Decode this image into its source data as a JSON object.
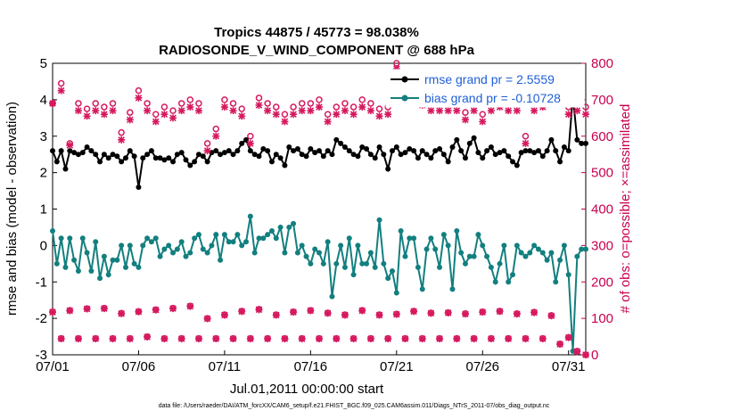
{
  "chart_data": {
    "type": "line",
    "title": "Tropics 44875 / 45773 = 98.038%",
    "subtitle": "RADIOSONDE_V_WIND_COMPONENT @ 688 hPa",
    "xlabel": "Jul.01,2011 00:00:00 start",
    "ylabel": "rmse and bias (model - observation)",
    "ylabel_right": "# of obs: o=possible; ×=assimilated",
    "footer": "data file: /Users/raeder/DAI/ATM_forcXX/CAM6_setup/f.e21.FHIST_BGC.f09_025.CAM6assim.011/Diags_NTrS_2011-07/obs_diag_output.nc",
    "xlim": [
      0,
      31
    ],
    "ylim": [
      -3,
      5
    ],
    "ylim_right": [
      0,
      800
    ],
    "x_tick_labels": [
      "07/01",
      "07/06",
      "07/11",
      "07/16",
      "07/21",
      "07/26",
      "07/31"
    ],
    "y_tick_labels": [
      "-3",
      "-2",
      "-1",
      "0",
      "1",
      "2",
      "3",
      "4",
      "5"
    ],
    "y_right_tick_labels": [
      "0",
      "100",
      "200",
      "300",
      "400",
      "500",
      "600",
      "700",
      "800"
    ],
    "grid": true,
    "zero_line": true,
    "legend": [
      {
        "label": "rmse grand pr = 2.5559",
        "color": "#000000"
      },
      {
        "label": "bias grand pr = -0.10728",
        "color": "#137f7f"
      }
    ],
    "series": [
      {
        "name": "rmse",
        "color": "#000000",
        "axis": "left",
        "x": [
          0.0,
          0.25,
          0.5,
          0.75,
          1.0,
          1.25,
          1.5,
          1.75,
          2.0,
          2.25,
          2.5,
          2.75,
          3.0,
          3.25,
          3.5,
          3.75,
          4.0,
          4.25,
          4.5,
          4.75,
          5.0,
          5.25,
          5.5,
          5.75,
          6.0,
          6.25,
          6.5,
          6.75,
          7.0,
          7.25,
          7.5,
          7.75,
          8.0,
          8.25,
          8.5,
          8.75,
          9.0,
          9.25,
          9.5,
          9.75,
          10.0,
          10.25,
          10.5,
          10.75,
          11.0,
          11.25,
          11.5,
          11.75,
          12.0,
          12.25,
          12.5,
          12.75,
          13.0,
          13.25,
          13.5,
          13.75,
          14.0,
          14.25,
          14.5,
          14.75,
          15.0,
          15.25,
          15.5,
          15.75,
          16.0,
          16.25,
          16.5,
          16.75,
          17.0,
          17.25,
          17.5,
          17.75,
          18.0,
          18.25,
          18.5,
          18.75,
          19.0,
          19.25,
          19.5,
          19.75,
          20.0,
          20.25,
          20.5,
          20.75,
          21.0,
          21.25,
          21.5,
          21.75,
          22.0,
          22.25,
          22.5,
          22.75,
          23.0,
          23.25,
          23.5,
          23.75,
          24.0,
          24.25,
          24.5,
          24.75,
          25.0,
          25.25,
          25.5,
          25.75,
          26.0,
          26.25,
          26.5,
          26.75,
          27.0,
          27.25,
          27.5,
          27.75,
          28.0,
          28.25,
          28.5,
          28.75,
          29.0,
          29.25,
          29.5,
          29.75,
          30.0,
          30.25,
          30.5,
          30.75,
          31.0
        ],
        "values": [
          2.6,
          2.3,
          2.6,
          2.1,
          2.6,
          2.55,
          2.5,
          2.55,
          2.7,
          2.6,
          2.5,
          2.3,
          2.5,
          2.4,
          2.5,
          2.45,
          2.3,
          2.4,
          2.6,
          2.45,
          1.6,
          2.4,
          2.5,
          2.6,
          2.4,
          2.4,
          2.35,
          2.4,
          2.3,
          2.5,
          2.55,
          2.35,
          2.2,
          2.3,
          2.5,
          2.45,
          2.3,
          2.55,
          2.6,
          2.5,
          2.55,
          2.6,
          2.5,
          2.6,
          2.8,
          2.9,
          2.6,
          2.5,
          2.45,
          2.65,
          2.6,
          2.3,
          2.5,
          2.4,
          2.2,
          2.7,
          2.6,
          2.65,
          2.5,
          2.45,
          2.65,
          2.55,
          2.6,
          2.45,
          2.6,
          2.5,
          2.9,
          2.8,
          2.7,
          2.6,
          2.5,
          2.45,
          2.7,
          2.65,
          2.5,
          2.4,
          2.7,
          2.5,
          2.1,
          2.6,
          2.7,
          2.5,
          2.55,
          2.65,
          2.6,
          2.4,
          2.6,
          2.5,
          2.4,
          2.6,
          2.65,
          2.5,
          2.3,
          2.7,
          2.9,
          2.6,
          2.4,
          2.8,
          2.95,
          2.55,
          2.4,
          2.6,
          2.7,
          2.5,
          2.55,
          2.6,
          2.45,
          2.3,
          2.2,
          2.55,
          2.6,
          2.6,
          2.55,
          2.6,
          2.45,
          2.6,
          2.9,
          2.6,
          2.3,
          2.7,
          2.6,
          4.1,
          2.9,
          2.8,
          2.8
        ]
      },
      {
        "name": "bias",
        "color": "#137f7f",
        "axis": "left",
        "x": [
          0.0,
          0.25,
          0.5,
          0.75,
          1.0,
          1.25,
          1.5,
          1.75,
          2.0,
          2.25,
          2.5,
          2.75,
          3.0,
          3.25,
          3.5,
          3.75,
          4.0,
          4.25,
          4.5,
          4.75,
          5.0,
          5.25,
          5.5,
          5.75,
          6.0,
          6.25,
          6.5,
          6.75,
          7.0,
          7.25,
          7.5,
          7.75,
          8.0,
          8.25,
          8.5,
          8.75,
          9.0,
          9.25,
          9.5,
          9.75,
          10.0,
          10.25,
          10.5,
          10.75,
          11.0,
          11.25,
          11.5,
          11.75,
          12.0,
          12.25,
          12.5,
          12.75,
          13.0,
          13.25,
          13.5,
          13.75,
          14.0,
          14.25,
          14.5,
          14.75,
          15.0,
          15.25,
          15.5,
          15.75,
          16.0,
          16.25,
          16.5,
          16.75,
          17.0,
          17.25,
          17.5,
          17.75,
          18.0,
          18.25,
          18.5,
          18.75,
          19.0,
          19.25,
          19.5,
          19.75,
          20.0,
          20.25,
          20.5,
          20.75,
          21.0,
          21.25,
          21.5,
          21.75,
          22.0,
          22.25,
          22.5,
          22.75,
          23.0,
          23.25,
          23.5,
          23.75,
          24.0,
          24.25,
          24.5,
          24.75,
          25.0,
          25.25,
          25.5,
          25.75,
          26.0,
          26.25,
          26.5,
          26.75,
          27.0,
          27.25,
          27.5,
          27.75,
          28.0,
          28.25,
          28.5,
          28.75,
          29.0,
          29.25,
          29.5,
          29.75,
          30.0,
          30.25,
          30.5,
          30.75,
          31.0
        ],
        "values": [
          0.4,
          -0.5,
          0.2,
          -0.6,
          0.2,
          -0.4,
          -0.7,
          0.2,
          -0.2,
          -0.7,
          0.1,
          -0.9,
          -0.3,
          -0.8,
          -0.4,
          -0.4,
          0.0,
          -0.6,
          0.0,
          -0.5,
          -0.6,
          0.0,
          0.2,
          0.1,
          0.2,
          -0.3,
          -0.1,
          0.0,
          -0.2,
          -0.1,
          0.1,
          -0.3,
          -0.2,
          0.2,
          0.3,
          -0.1,
          -0.2,
          0.0,
          0.3,
          -0.4,
          0.3,
          0.1,
          0.1,
          0.3,
          0.0,
          0.1,
          0.8,
          -0.2,
          0.2,
          0.2,
          0.3,
          0.4,
          0.2,
          0.5,
          -0.2,
          0.5,
          0.6,
          -0.2,
          0.0,
          -0.3,
          -0.5,
          -0.1,
          -0.2,
          -0.5,
          0.1,
          -1.4,
          -0.5,
          0.0,
          -0.6,
          0.2,
          -0.8,
          0.0,
          -0.5,
          -0.5,
          -0.2,
          -0.6,
          0.7,
          -0.5,
          -0.9,
          -0.7,
          -1.3,
          0.4,
          -0.3,
          0.2,
          0.2,
          -0.6,
          -1.2,
          -0.1,
          0.2,
          -0.1,
          -0.6,
          0.3,
          0.0,
          -1.2,
          0.4,
          -0.2,
          -0.5,
          -0.3,
          -0.3,
          0.3,
          0.0,
          -0.3,
          -0.6,
          -1.0,
          -0.5,
          0.0,
          -1.0,
          -0.8,
          0.0,
          -0.2,
          -0.3,
          -0.2,
          0.0,
          -0.1,
          -0.2,
          -0.4,
          -0.2,
          -1.0,
          -0.4,
          0.0,
          -0.8,
          -2.9,
          -0.3,
          -0.1,
          -0.1
        ]
      },
      {
        "name": "obs possible",
        "color": "#d6195f",
        "axis": "right",
        "marker": "o",
        "x": [
          0.0,
          0.5,
          1.0,
          1.5,
          2.0,
          2.5,
          3.0,
          3.5,
          4.0,
          4.5,
          5.0,
          5.5,
          6.0,
          6.5,
          7.0,
          7.5,
          8.0,
          8.5,
          9.0,
          9.5,
          10.0,
          10.5,
          11.0,
          11.5,
          12.0,
          12.5,
          13.0,
          13.5,
          14.0,
          14.5,
          15.0,
          15.5,
          16.0,
          16.5,
          17.0,
          17.5,
          18.0,
          18.5,
          19.0,
          19.5,
          20.0,
          20.5,
          21.0,
          21.5,
          22.0,
          22.5,
          23.0,
          23.5,
          24.0,
          24.5,
          25.0,
          25.5,
          26.0,
          26.5,
          27.0,
          27.5,
          28.0,
          28.5,
          29.0,
          29.5,
          30.0,
          30.5,
          31.0
        ],
        "values": [
          118,
          45,
          122,
          45,
          127,
          45,
          128,
          45,
          114,
          45,
          119,
          50,
          124,
          45,
          128,
          45,
          134,
          45,
          100,
          45,
          110,
          45,
          120,
          45,
          125,
          45,
          110,
          45,
          118,
          45,
          122,
          45,
          115,
          45,
          110,
          45,
          122,
          45,
          110,
          45,
          112,
          45,
          120,
          45,
          115,
          45,
          116,
          45,
          113,
          45,
          118,
          45,
          120,
          45,
          113,
          45,
          117,
          45,
          108,
          30,
          48,
          10,
          0
        ]
      },
      {
        "name": "obs assimilated",
        "color": "#d6195f",
        "axis": "right",
        "marker": "x",
        "x": [
          0.0,
          0.5,
          1.0,
          1.5,
          2.0,
          2.5,
          3.0,
          3.5,
          4.0,
          4.5,
          5.0,
          5.5,
          6.0,
          6.5,
          7.0,
          7.5,
          8.0,
          8.5,
          9.0,
          9.5,
          10.0,
          10.5,
          11.0,
          11.5,
          12.0,
          12.5,
          13.0,
          13.5,
          14.0,
          14.5,
          15.0,
          15.5,
          16.0,
          16.5,
          17.0,
          17.5,
          18.0,
          18.5,
          19.0,
          19.5,
          20.0,
          20.5,
          21.0,
          21.5,
          22.0,
          22.5,
          23.0,
          23.5,
          24.0,
          24.5,
          25.0,
          25.5,
          26.0,
          26.5,
          27.0,
          27.5,
          28.0,
          28.5,
          29.0,
          29.5,
          30.0,
          30.5,
          31.0
        ],
        "values": [
          117,
          44,
          121,
          44,
          126,
          44,
          127,
          44,
          113,
          44,
          118,
          49,
          123,
          44,
          127,
          44,
          133,
          44,
          99,
          44,
          109,
          44,
          119,
          44,
          124,
          44,
          109,
          44,
          117,
          44,
          121,
          44,
          114,
          44,
          109,
          44,
          121,
          44,
          109,
          44,
          111,
          44,
          119,
          44,
          114,
          44,
          115,
          44,
          112,
          44,
          117,
          44,
          119,
          44,
          112,
          44,
          116,
          44,
          107,
          29,
          47,
          9,
          0
        ]
      },
      {
        "name": "obs possible (upper)",
        "color": "#d6195f",
        "axis": "right",
        "marker": "o",
        "x": [
          0.0,
          0.5,
          1.0,
          1.5,
          2.0,
          2.5,
          3.0,
          3.5,
          4.0,
          4.5,
          5.0,
          5.5,
          6.0,
          6.5,
          7.0,
          7.5,
          8.0,
          8.5,
          9.0,
          9.5,
          10.0,
          10.5,
          11.0,
          11.5,
          12.0,
          12.5,
          13.0,
          13.5,
          14.0,
          14.5,
          15.0,
          15.5,
          16.0,
          16.5,
          17.0,
          17.5,
          18.0,
          18.5,
          19.0,
          19.5,
          20.0,
          20.5,
          21.0,
          21.5,
          22.0,
          22.5,
          23.0,
          23.5,
          24.0,
          24.5,
          25.0,
          25.5,
          26.0,
          26.5,
          27.0,
          27.5,
          28.0,
          28.5,
          29.0,
          29.5,
          30.0,
          30.5,
          31.0
        ],
        "values": [
          690,
          745,
          580,
          690,
          675,
          690,
          680,
          690,
          610,
          665,
          725,
          690,
          660,
          680,
          670,
          690,
          700,
          690,
          580,
          620,
          700,
          690,
          675,
          600,
          705,
          690,
          680,
          660,
          680,
          690,
          690,
          700,
          660,
          680,
          690,
          680,
          700,
          690,
          675,
          680,
          800,
          760,
          760,
          700,
          690,
          690,
          690,
          690,
          665,
          690,
          660,
          690,
          700,
          690,
          690,
          600,
          690,
          700,
          710,
          760,
          680,
          690,
          680
        ]
      },
      {
        "name": "obs assimilated (upper)",
        "color": "#d6195f",
        "axis": "right",
        "marker": "x",
        "x": [
          0.0,
          0.5,
          1.0,
          1.5,
          2.0,
          2.5,
          3.0,
          3.5,
          4.0,
          4.5,
          5.0,
          5.5,
          6.0,
          6.5,
          7.0,
          7.5,
          8.0,
          8.5,
          9.0,
          9.5,
          10.0,
          10.5,
          11.0,
          11.5,
          12.0,
          12.5,
          13.0,
          13.5,
          14.0,
          14.5,
          15.0,
          15.5,
          16.0,
          16.5,
          17.0,
          17.5,
          18.0,
          18.5,
          19.0,
          19.5,
          20.0,
          20.5,
          21.0,
          21.5,
          22.0,
          22.5,
          23.0,
          23.5,
          24.0,
          24.5,
          25.0,
          25.5,
          26.0,
          26.5,
          27.0,
          27.5,
          28.0,
          28.5,
          29.0,
          29.5,
          30.0,
          30.5,
          31.0
        ],
        "values": [
          690,
          725,
          575,
          670,
          655,
          670,
          660,
          670,
          590,
          645,
          705,
          670,
          640,
          660,
          650,
          670,
          680,
          670,
          560,
          600,
          680,
          670,
          655,
          580,
          685,
          670,
          660,
          640,
          660,
          670,
          670,
          680,
          640,
          660,
          670,
          660,
          680,
          670,
          655,
          660,
          785,
          745,
          760,
          685,
          670,
          670,
          670,
          670,
          645,
          670,
          640,
          670,
          680,
          670,
          670,
          580,
          670,
          680,
          690,
          740,
          660,
          670,
          660
        ]
      }
    ]
  }
}
